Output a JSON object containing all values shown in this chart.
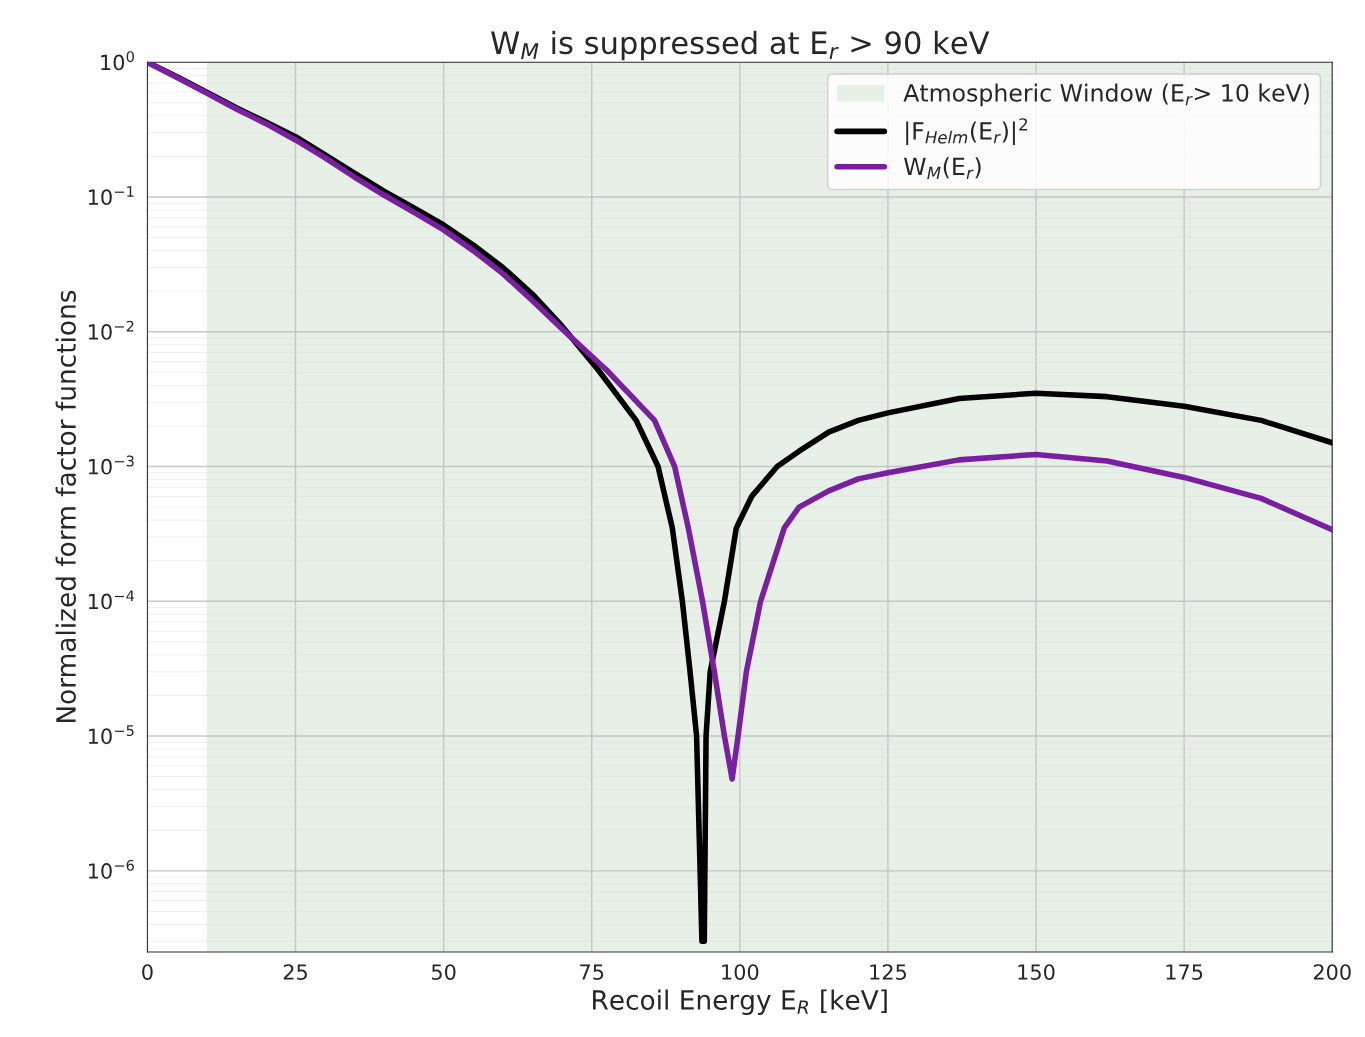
{
  "chart_data": {
    "type": "line",
    "title": "W$_{M}$ is suppressed at E$_{r}$ > 90 keV",
    "xlabel": "Recoil Energy E$_{R}$ [keV]",
    "ylabel": "Normalized form factor functions",
    "log": "y",
    "xlim": [
      0,
      200
    ],
    "xticks": [
      0,
      25,
      50,
      75,
      100,
      125,
      150,
      175,
      200
    ],
    "ylim": [
      2.5e-07,
      1
    ],
    "yticks": [
      {
        "value": 1e-06,
        "label": "10$^{−6}$"
      },
      {
        "value": 1e-05,
        "label": "10$^{−5}$"
      },
      {
        "value": 0.0001,
        "label": "10$^{−4}$"
      },
      {
        "value": 0.001,
        "label": "10$^{−3}$"
      },
      {
        "value": 0.01,
        "label": "10$^{−2}$"
      },
      {
        "value": 0.1,
        "label": "10$^{−1}$"
      },
      {
        "value": 1,
        "label": "10$^{0}$"
      }
    ],
    "grid": true,
    "legend": "top right",
    "bands": [
      {
        "axis": "x",
        "from": 10,
        "to": 200,
        "label": "Atmospheric Window (E$_{r}$> 10 keV)",
        "color": "#e6f0e6"
      }
    ],
    "series": [
      {
        "name": "|F$_{Helm}$(E$_{r}$)|$^{2}$",
        "color": "#000000",
        "x": [
          0,
          5,
          10,
          15,
          20,
          25,
          30,
          35,
          40,
          45,
          50,
          55,
          60,
          65,
          70,
          76.1,
          82.5,
          86.2,
          88.6,
          90.3,
          91.6,
          92.7,
          93.3,
          93.6,
          94.0,
          94.3,
          95.0,
          97.4,
          99.4,
          102,
          106.3,
          110,
          115,
          120,
          125,
          137,
          150,
          162,
          175,
          188,
          200
        ],
        "values": [
          1,
          0.78,
          0.6,
          0.46,
          0.36,
          0.28,
          0.205,
          0.15,
          0.11,
          0.083,
          0.062,
          0.044,
          0.03,
          0.019,
          0.011,
          0.0052,
          0.0022,
          0.001,
          0.00035,
          0.0001,
          3e-05,
          1e-05,
          1e-06,
          3e-07,
          3e-07,
          1e-05,
          3e-05,
          0.0001,
          0.00035,
          0.0006,
          0.001,
          0.0013,
          0.0018,
          0.0022,
          0.0025,
          0.0032,
          0.0035,
          0.0033,
          0.0028,
          0.0022,
          0.0015
        ]
      },
      {
        "name": "W$_{M}$(E$_{r}$)",
        "color": "#7b1fa2",
        "x": [
          0,
          5,
          10,
          15,
          20,
          25,
          30,
          35,
          40,
          45,
          50,
          55,
          60,
          65,
          70,
          77.5,
          85.6,
          89.0,
          91.3,
          93.7,
          95.7,
          97.4,
          98.7,
          99.7,
          101.1,
          103.5,
          107.5,
          110,
          115,
          120,
          125,
          137,
          150,
          162,
          175,
          188,
          200
        ],
        "values": [
          1,
          0.77,
          0.59,
          0.45,
          0.35,
          0.265,
          0.195,
          0.14,
          0.103,
          0.077,
          0.057,
          0.04,
          0.027,
          0.017,
          0.0105,
          0.0052,
          0.0022,
          0.001,
          0.00035,
          0.0001,
          3e-05,
          1e-05,
          4.8e-06,
          1e-05,
          3e-05,
          0.0001,
          0.00035,
          0.0005,
          0.00066,
          0.00081,
          0.0009,
          0.00112,
          0.00123,
          0.0011,
          0.00083,
          0.00058,
          0.00034
        ]
      }
    ]
  }
}
